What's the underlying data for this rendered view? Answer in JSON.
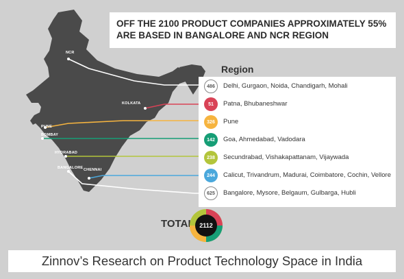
{
  "headline": {
    "line1": "OFF THE 2100 PRODUCT COMPANIES APPROXIMATELY 55%",
    "line2": "ARE BASED IN BANGALORE AND NCR REGION"
  },
  "region_title": "Region",
  "map_cities": {
    "ncr": "NCR",
    "kolkata": "KOLKATA",
    "pune": "PUNE",
    "bombay": "BOMBAY",
    "hydrabad": "HYDRABAD",
    "bangalore": "BANGALORE",
    "chennai": "CHENNAI"
  },
  "regions": [
    {
      "count": "486",
      "label": "Delhi, Gurgaon, Noida, Chandigarh, Mohali",
      "color": "#ffffff",
      "outline": true
    },
    {
      "count": "51",
      "label": "Patna, Bhubaneshwar",
      "color": "#d94256",
      "outline": false
    },
    {
      "count": "326",
      "label": "Pune",
      "color": "#f6b43f",
      "outline": false
    },
    {
      "count": "142",
      "label": "Goa, Ahmedabad, Vadodara",
      "color": "#169e76",
      "outline": false
    },
    {
      "count": "238",
      "label": "Secundrabad, Vishakapattanam, Vijaywada",
      "color": "#b3c53b",
      "outline": false
    },
    {
      "count": "244",
      "label": "Calicut, Trivandrum, Madurai, Coimbatore, Cochin, Vellore",
      "color": "#4aa8dc",
      "outline": false
    },
    {
      "count": "625",
      "label": "Bangalore, Mysore, Belgaum, Gulbarga, Hubli",
      "color": "#ffffff",
      "outline": true
    }
  ],
  "total": {
    "label": "TOTAL",
    "value": "2112"
  },
  "footer": "Zinnov’s Research on Product Technology Space in India",
  "colors": {
    "background": "#d0d0d0",
    "map": "#4a4a4a",
    "text": "#333333"
  }
}
